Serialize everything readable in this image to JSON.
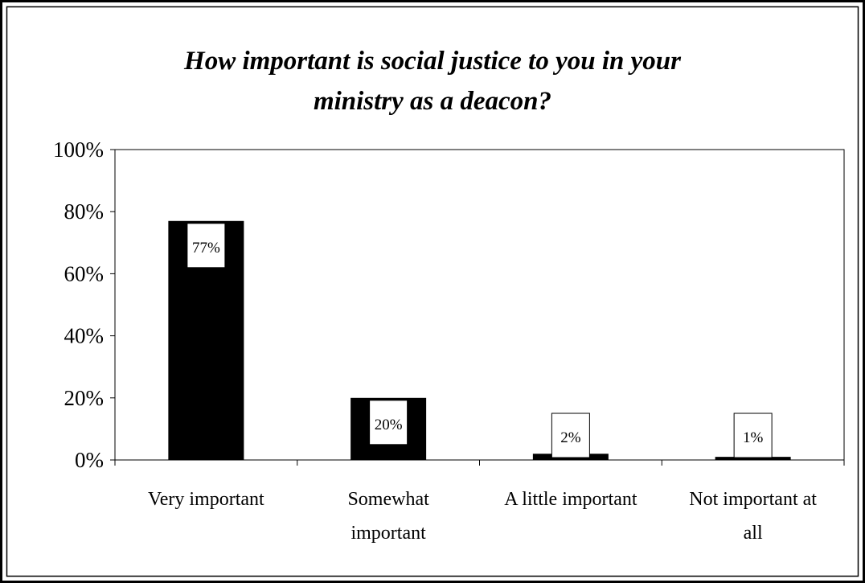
{
  "chart_data": {
    "type": "bar",
    "title": [
      "How important is social justice to you in your",
      "ministry as a deacon?"
    ],
    "categories": [
      [
        "Very important"
      ],
      [
        "Somewhat",
        "important"
      ],
      [
        "A little important"
      ],
      [
        "Not important at",
        "all"
      ]
    ],
    "values": [
      77,
      20,
      2,
      1
    ],
    "data_labels": [
      "77%",
      "20%",
      "2%",
      "1%"
    ],
    "ylim": [
      0,
      100
    ],
    "yticks": [
      0,
      20,
      40,
      60,
      80,
      100
    ],
    "ytick_labels": [
      "0%",
      "20%",
      "40%",
      "60%",
      "80%",
      "100%"
    ],
    "bar_color": "#000000",
    "label_box_color": "#ffffff",
    "grid": false,
    "legend": "none"
  }
}
